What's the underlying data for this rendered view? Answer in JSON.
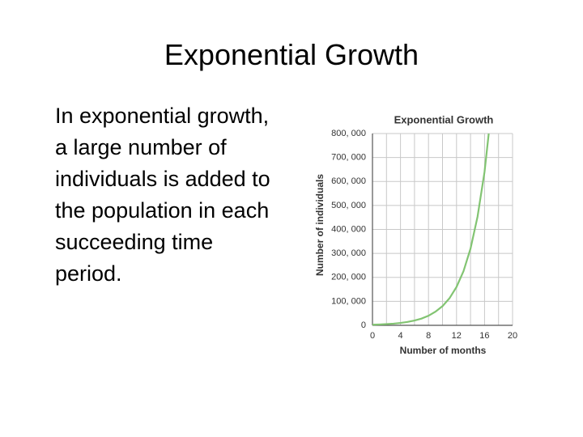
{
  "slide": {
    "title": "Exponential Growth",
    "body_lines": [
      "In exponential growth,",
      "a large number of",
      "individuals is added to",
      "the population in each",
      "succeeding time",
      "period."
    ]
  },
  "chart_data": {
    "type": "line",
    "title": "Exponential Growth",
    "x_label": "Number of months",
    "y_label": "Number of individuals",
    "x": [
      0,
      1,
      2,
      3,
      4,
      5,
      6,
      7,
      8,
      9,
      10,
      11,
      12,
      13,
      14,
      15,
      16,
      16.6
    ],
    "values": [
      2500,
      3500,
      5000,
      7000,
      10000,
      14000,
      20000,
      28000,
      40000,
      57000,
      80000,
      113000,
      160000,
      226000,
      320000,
      453000,
      640000,
      800000
    ],
    "color": "#82c472",
    "xlim": [
      0,
      20
    ],
    "xticks": [
      0,
      4,
      8,
      12,
      16,
      20
    ],
    "ylim": [
      0,
      800000
    ],
    "yticks": [
      0,
      {
        "value": 100000,
        "label": "100, 000"
      },
      {
        "value": 200000,
        "label": "200, 000"
      },
      {
        "value": 300000,
        "label": "300, 000"
      },
      {
        "value": 400000,
        "label": "400, 000"
      },
      {
        "value": 500000,
        "label": "500, 000"
      },
      {
        "value": 600000,
        "label": "600, 000"
      },
      {
        "value": 700000,
        "label": "700, 000"
      },
      {
        "value": 800000,
        "label": "800, 000"
      }
    ],
    "grid": true
  }
}
